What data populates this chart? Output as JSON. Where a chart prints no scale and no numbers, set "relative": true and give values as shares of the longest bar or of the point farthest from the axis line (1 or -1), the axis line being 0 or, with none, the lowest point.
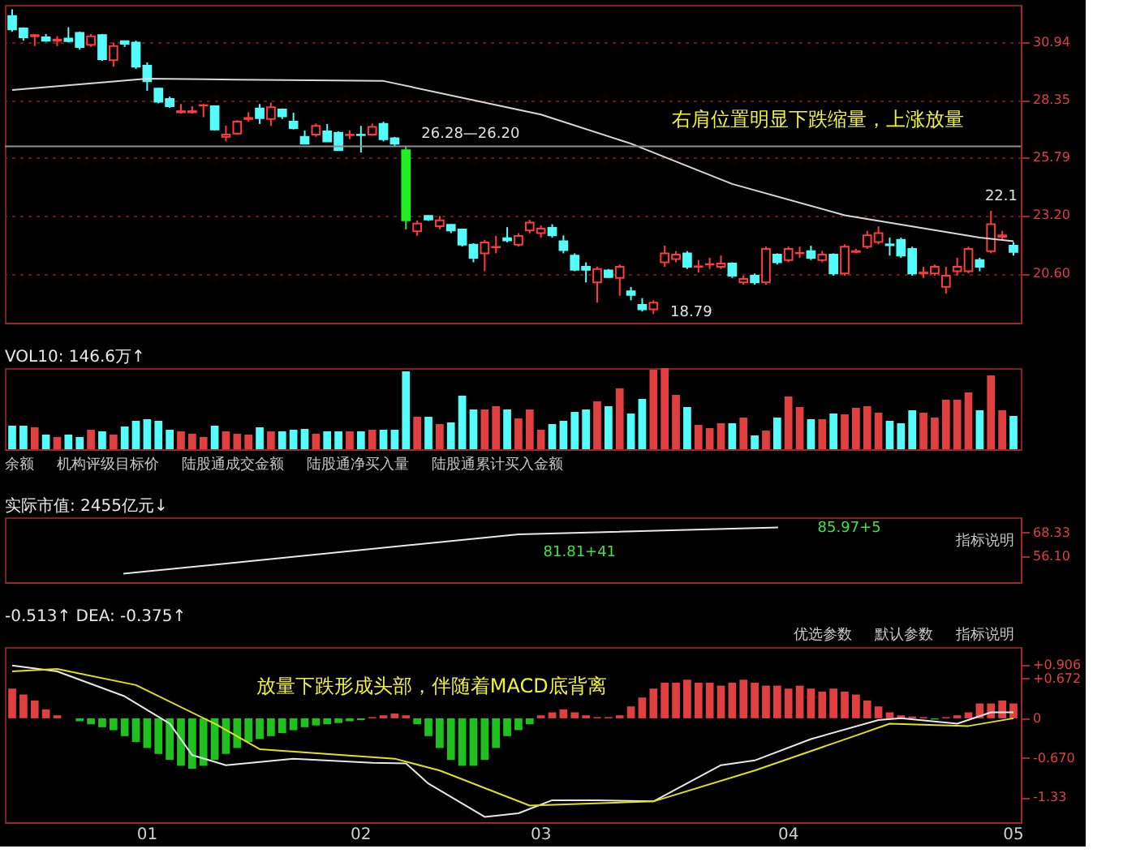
{
  "chart_data": [
    {
      "type": "candlestick",
      "categories": [
        null,
        null,
        null,
        null,
        null,
        null,
        null,
        null,
        null,
        null,
        null,
        null,
        "01",
        null,
        null,
        null,
        null,
        null,
        null,
        null,
        null,
        null,
        null,
        null,
        null,
        null,
        null,
        null,
        null,
        null,
        null,
        "02",
        null,
        null,
        null,
        null,
        null,
        null,
        null,
        null,
        null,
        null,
        null,
        null,
        null,
        null,
        null,
        "03",
        null,
        null,
        null,
        null,
        null,
        null,
        null,
        null,
        null,
        null,
        null,
        null,
        null,
        null,
        null,
        null,
        null,
        null,
        null,
        null,
        null,
        "04",
        null,
        null,
        null,
        null,
        null,
        null,
        null,
        null,
        null,
        null,
        null,
        null,
        null,
        null,
        null,
        null,
        null,
        null,
        null,
        "05"
      ],
      "ohlc": [
        [
          32.1,
          32.4,
          31.4,
          31.5
        ],
        [
          31.55,
          31.6,
          31.0,
          31.15
        ],
        [
          31.2,
          31.3,
          30.76,
          31.25
        ],
        [
          31.15,
          31.3,
          30.95,
          31.0
        ],
        [
          31.0,
          31.2,
          30.76,
          31.05
        ],
        [
          31.1,
          31.6,
          30.92,
          30.98
        ],
        [
          31.35,
          31.4,
          30.6,
          30.72
        ],
        [
          30.82,
          31.3,
          30.72,
          31.2
        ],
        [
          31.25,
          31.3,
          30.1,
          30.17
        ],
        [
          30.13,
          30.92,
          29.84,
          30.76
        ],
        [
          30.98,
          31.0,
          30.72,
          30.86
        ],
        [
          30.92,
          31.0,
          29.74,
          29.84
        ],
        [
          29.88,
          30.03,
          28.76,
          29.19
        ],
        [
          28.86,
          28.9,
          28.2,
          28.27
        ],
        [
          28.4,
          28.5,
          28.0,
          28.07
        ],
        [
          27.8,
          28.17,
          27.74,
          27.85
        ],
        [
          27.8,
          28.07,
          27.74,
          27.85
        ],
        [
          28.1,
          28.17,
          27.58,
          28.12
        ],
        [
          28.07,
          28.1,
          27.0,
          27.03
        ],
        [
          26.7,
          27.2,
          26.5,
          26.8
        ],
        [
          26.85,
          27.45,
          26.8,
          27.38
        ],
        [
          27.5,
          27.8,
          27.38,
          27.55
        ],
        [
          27.97,
          28.17,
          27.28,
          27.54
        ],
        [
          27.5,
          28.23,
          27.19,
          28.03
        ],
        [
          27.93,
          27.97,
          27.5,
          27.62
        ],
        [
          27.38,
          27.78,
          27.03,
          27.09
        ],
        [
          26.7,
          26.99,
          26.4,
          26.4
        ],
        [
          26.8,
          27.3,
          26.7,
          27.19
        ],
        [
          26.95,
          27.28,
          26.5,
          26.5
        ],
        [
          26.89,
          26.95,
          26.1,
          26.11
        ],
        [
          26.78,
          26.99,
          26.6,
          26.8
        ],
        [
          26.8,
          27.19,
          26.0,
          26.78
        ],
        [
          26.8,
          27.3,
          26.75,
          27.15
        ],
        [
          27.28,
          27.38,
          26.5,
          26.6
        ],
        [
          26.64,
          26.7,
          26.3,
          26.4
        ],
        [
          26.11,
          26.28,
          22.57,
          22.97
        ],
        [
          22.48,
          22.97,
          22.28,
          22.83
        ],
        [
          23.17,
          23.2,
          22.95,
          23.01
        ],
        [
          22.71,
          23.17,
          22.57,
          22.97
        ],
        [
          22.77,
          22.8,
          22.4,
          22.52
        ],
        [
          22.57,
          22.6,
          21.8,
          21.89
        ],
        [
          21.89,
          21.95,
          21.1,
          21.3
        ],
        [
          21.5,
          22.1,
          20.7,
          21.99
        ],
        [
          21.77,
          22.28,
          21.5,
          21.79
        ],
        [
          22.18,
          22.67,
          21.99,
          22.08
        ],
        [
          21.89,
          22.4,
          21.8,
          22.28
        ],
        [
          22.52,
          23.0,
          22.4,
          22.87
        ],
        [
          22.4,
          22.75,
          22.2,
          22.6
        ],
        [
          22.64,
          22.8,
          22.2,
          22.3
        ],
        [
          22.04,
          22.3,
          21.5,
          21.64
        ],
        [
          21.4,
          21.5,
          20.7,
          20.76
        ],
        [
          20.9,
          21.1,
          20.2,
          20.76
        ],
        [
          20.2,
          20.9,
          19.3,
          20.8
        ],
        [
          20.74,
          20.8,
          20.4,
          20.44
        ],
        [
          20.4,
          21.0,
          19.6,
          20.9
        ],
        [
          19.8,
          20.0,
          19.4,
          19.64
        ],
        [
          19.2,
          19.5,
          18.9,
          19.0
        ],
        [
          19.0,
          19.4,
          18.79,
          19.3
        ],
        [
          21.1,
          21.84,
          20.9,
          21.5
        ],
        [
          21.24,
          21.6,
          21.1,
          21.44
        ],
        [
          21.5,
          21.6,
          20.8,
          20.9
        ],
        [
          20.9,
          21.2,
          20.64,
          20.92
        ],
        [
          21.0,
          21.3,
          20.8,
          21.02
        ],
        [
          20.9,
          21.4,
          20.8,
          21.04
        ],
        [
          21.04,
          21.1,
          20.4,
          20.5
        ],
        [
          20.2,
          20.5,
          20.1,
          20.36
        ],
        [
          20.5,
          20.6,
          20.1,
          20.2
        ],
        [
          20.2,
          21.8,
          20.1,
          21.7
        ],
        [
          21.44,
          21.5,
          21.0,
          21.1
        ],
        [
          21.2,
          21.8,
          21.1,
          21.7
        ],
        [
          21.5,
          21.8,
          21.3,
          21.52
        ],
        [
          21.6,
          21.84,
          21.2,
          21.3
        ],
        [
          21.2,
          21.6,
          21.1,
          21.44
        ],
        [
          21.44,
          21.5,
          20.5,
          20.6
        ],
        [
          20.6,
          21.9,
          20.5,
          21.8
        ],
        [
          21.56,
          21.7,
          21.5,
          21.6
        ],
        [
          21.8,
          22.5,
          21.7,
          22.3
        ],
        [
          22.0,
          22.7,
          21.9,
          22.4
        ],
        [
          21.9,
          22.2,
          21.4,
          21.86
        ],
        [
          22.1,
          22.2,
          21.3,
          21.4
        ],
        [
          21.7,
          21.8,
          20.5,
          20.6
        ],
        [
          20.6,
          20.9,
          20.4,
          20.64
        ],
        [
          20.6,
          21.0,
          20.5,
          20.9
        ],
        [
          20.0,
          20.9,
          19.7,
          20.5
        ],
        [
          20.7,
          21.3,
          20.5,
          20.9
        ],
        [
          20.7,
          21.8,
          20.6,
          21.7
        ],
        [
          21.2,
          21.3,
          20.7,
          20.9
        ],
        [
          21.6,
          23.4,
          21.5,
          22.8
        ],
        [
          22.24,
          22.5,
          22.1,
          22.3
        ],
        [
          21.84,
          22.0,
          21.4,
          21.56
        ]
      ],
      "colors": [
        "#54fcfc",
        "#54fcfc",
        "#ff3c3c",
        "#54fcfc",
        "#ff3c3c",
        "#54fcfc",
        "#54fcfc",
        "#ff3c3c",
        "#54fcfc",
        "#ff3c3c",
        "#54fcfc",
        "#54fcfc",
        "#54fcfc",
        "#54fcfc",
        "#54fcfc",
        "#ff3c3c",
        "#ff3c3c",
        "#ff3c3c",
        "#54fcfc",
        "#ff3c3c",
        "#ff3c3c",
        "#ff3c3c",
        "#54fcfc",
        "#ff3c3c",
        "#54fcfc",
        "#54fcfc",
        "#54fcfc",
        "#ff3c3c",
        "#54fcfc",
        "#54fcfc",
        "#ff3c3c",
        "#54fcfc",
        "#ff3c3c",
        "#54fcfc",
        "#54fcfc",
        "#22ee22",
        "#ff3c3c",
        "#54fcfc",
        "#ff3c3c",
        "#54fcfc",
        "#54fcfc",
        "#54fcfc",
        "#ff3c3c",
        "#ff3c3c",
        "#54fcfc",
        "#ff3c3c",
        "#ff3c3c",
        "#ff3c3c",
        "#54fcfc",
        "#54fcfc",
        "#54fcfc",
        "#54fcfc",
        "#ff3c3c",
        "#54fcfc",
        "#ff3c3c",
        "#54fcfc",
        "#54fcfc",
        "#ff3c3c",
        "#ff3c3c",
        "#ff3c3c",
        "#54fcfc",
        "#ff3c3c",
        "#ff3c3c",
        "#ff3c3c",
        "#54fcfc",
        "#ff3c3c",
        "#54fcfc",
        "#ff3c3c",
        "#54fcfc",
        "#ff3c3c",
        "#ff3c3c",
        "#54fcfc",
        "#ff3c3c",
        "#54fcfc",
        "#ff3c3c",
        "#ff3c3c",
        "#ff3c3c",
        "#ff3c3c",
        "#54fcfc",
        "#54fcfc",
        "#54fcfc",
        "#ff3c3c",
        "#ff3c3c",
        "#ff3c3c",
        "#ff3c3c",
        "#ff3c3c",
        "#54fcfc",
        "#ff3c3c",
        "#ff3c3c",
        "#54fcfc"
      ],
      "series": [
        {
          "type": "line",
          "color": "#d8d8d8",
          "values": [
            28.8,
            null,
            null,
            null,
            null,
            null,
            null,
            null,
            null,
            null,
            null,
            null,
            29.3,
            null,
            null,
            null,
            null,
            null,
            null,
            null,
            29.26,
            null,
            null,
            null,
            null,
            null,
            null,
            null,
            null,
            null,
            null,
            null,
            null,
            29.2,
            null,
            null,
            null,
            null,
            null,
            null,
            null,
            null,
            null,
            null,
            null,
            null,
            null,
            27.7,
            null,
            null,
            null,
            null,
            null,
            null,
            null,
            26.4,
            null,
            null,
            null,
            null,
            null,
            null,
            null,
            null,
            24.6,
            null,
            null,
            null,
            null,
            null,
            null,
            null,
            null,
            null,
            23.2,
            null,
            null,
            null,
            null,
            null,
            null,
            null,
            null,
            null,
            null,
            null,
            22.2,
            null,
            null,
            22.04
          ]
        }
      ],
      "ylim": [
        18.4,
        32.6
      ],
      "yticks": [
        {
          "value": 20.6,
          "label": "20.60"
        },
        {
          "value": 23.2,
          "label": "23.20"
        },
        25.79,
        28.35,
        30.94
      ],
      "grid": "y",
      "tick_labels": "y",
      "ref_lines": [
        {
          "axis": "y",
          "value": 26.28,
          "color": "#909090"
        }
      ],
      "annotations": [
        "右肩位置明显下跌缩量，上涨放量",
        "26.28—26.20",
        "18.79",
        "22.1"
      ]
    },
    {
      "type": "bar",
      "title": "VOL10: 146.6万↑",
      "relative": true,
      "tick_labels": false,
      "categories": [
        null,
        null,
        null,
        null,
        null,
        null,
        null,
        null,
        null,
        null,
        null,
        null,
        "01",
        null,
        null,
        null,
        null,
        null,
        null,
        null,
        null,
        null,
        null,
        null,
        null,
        null,
        null,
        null,
        null,
        null,
        null,
        "02",
        null,
        null,
        null,
        null,
        null,
        null,
        null,
        null,
        null,
        null,
        null,
        null,
        null,
        null,
        null,
        "03",
        null,
        null,
        null,
        null,
        null,
        null,
        null,
        null,
        null,
        null,
        null,
        null,
        null,
        null,
        null,
        null,
        null,
        null,
        null,
        null,
        null,
        "04",
        null,
        null,
        null,
        null,
        null,
        null,
        null,
        null,
        null,
        null,
        null,
        null,
        null,
        null,
        null,
        null,
        null,
        null,
        null,
        "05"
      ],
      "series": [
        {
          "color": "#54fcfc",
          "values": [
            0.29,
            0.29,
            null,
            0.18,
            null,
            0.18,
            0.15,
            null,
            0.22,
            null,
            0.28,
            0.35,
            0.37,
            0.35,
            0.24,
            null,
            null,
            null,
            0.29,
            null,
            null,
            null,
            0.27,
            null,
            0.22,
            0.24,
            0.25,
            null,
            0.22,
            0.22,
            null,
            0.22,
            null,
            0.24,
            0.24,
            0.96,
            null,
            0.4,
            null,
            0.33,
            0.66,
            0.49,
            null,
            null,
            0.49,
            null,
            null,
            null,
            0.31,
            0.35,
            0.46,
            0.49,
            null,
            0.53,
            null,
            0.44,
            0.62,
            null,
            null,
            null,
            0.52,
            null,
            null,
            null,
            0.32,
            null,
            0.17,
            null,
            0.39,
            null,
            null,
            0.37,
            null,
            0.44,
            null,
            null,
            null,
            null,
            0.35,
            0.32,
            0.48,
            null,
            null,
            null,
            null,
            null,
            0.48,
            null,
            null,
            0.41
          ]
        },
        {
          "color": "#e04040",
          "values": [
            null,
            null,
            0.27,
            null,
            0.15,
            null,
            null,
            0.24,
            null,
            0.18,
            null,
            null,
            null,
            null,
            null,
            0.22,
            0.19,
            0.15,
            null,
            0.22,
            0.19,
            0.18,
            null,
            0.22,
            null,
            null,
            null,
            0.19,
            null,
            null,
            0.22,
            null,
            0.24,
            null,
            null,
            null,
            0.4,
            null,
            0.31,
            null,
            null,
            null,
            0.49,
            0.53,
            null,
            0.38,
            0.49,
            0.24,
            null,
            null,
            null,
            null,
            0.59,
            null,
            0.75,
            null,
            null,
            0.98,
            1.0,
            0.67,
            null,
            0.3,
            0.26,
            0.32,
            null,
            0.39,
            null,
            0.23,
            null,
            0.65,
            0.52,
            null,
            0.37,
            null,
            0.43,
            0.51,
            0.53,
            0.45,
            null,
            null,
            null,
            0.45,
            0.39,
            0.61,
            0.61,
            0.7,
            null,
            0.91,
            0.48,
            null
          ]
        }
      ],
      "annotations": [
        "余额",
        "机构评级目标价",
        "陆股通成交金额",
        "陆股通净买入量",
        "陆股通累计买入金额"
      ]
    },
    {
      "type": "line",
      "title": "实际市值: 2455亿元↓",
      "tick_labels": "y",
      "categories": [
        null,
        null,
        null,
        null,
        null,
        null,
        null,
        null,
        null,
        null,
        null,
        null,
        "01",
        null,
        null,
        null,
        null,
        null,
        null,
        null,
        null,
        null,
        null,
        null,
        null,
        null,
        null,
        null,
        null,
        null,
        null,
        "02",
        null,
        null,
        null,
        null,
        null,
        null,
        null,
        null,
        null,
        null,
        null,
        null,
        null,
        null,
        null,
        "03",
        null,
        null,
        null,
        null,
        null,
        null,
        null,
        null,
        null,
        null,
        null,
        null,
        null,
        null,
        null,
        null,
        null,
        null,
        null,
        null,
        null,
        "04",
        null,
        null,
        null,
        null,
        null,
        null,
        null,
        null,
        null,
        null,
        null,
        null,
        null,
        null,
        null,
        null,
        null,
        null,
        null,
        "05"
      ],
      "series": [
        {
          "color": "#e8e8e8",
          "values": [
            null,
            null,
            null,
            null,
            null,
            null,
            null,
            null,
            null,
            null,
            47.3,
            null,
            null,
            null,
            null,
            null,
            null,
            null,
            null,
            null,
            null,
            null,
            null,
            null,
            null,
            null,
            null,
            null,
            null,
            null,
            null,
            null,
            null,
            null,
            null,
            null,
            null,
            null,
            null,
            null,
            null,
            null,
            null,
            null,
            null,
            67.35,
            null,
            null,
            null,
            null,
            null,
            null,
            null,
            null,
            null,
            null,
            null,
            null,
            null,
            null,
            null,
            null,
            null,
            null,
            null,
            null,
            null,
            null,
            70.8,
            null,
            null,
            null,
            null,
            null,
            null,
            null,
            null,
            null,
            null,
            null,
            null,
            null,
            null,
            null,
            null,
            null,
            null,
            null,
            null,
            null
          ]
        }
      ],
      "ylim": [
        43,
        76
      ],
      "yticks": [
        {
          "value": 56.1,
          "label": "56.10"
        },
        68.33
      ],
      "annotations": [
        "指标说明",
        "81.81+41",
        "85.97+5"
      ]
    },
    {
      "type": "line",
      "title": "-0.513↑  DEA: -0.375↑",
      "categories": [
        null,
        null,
        null,
        null,
        null,
        null,
        null,
        null,
        null,
        null,
        null,
        null,
        "01",
        null,
        null,
        null,
        null,
        null,
        null,
        null,
        null,
        null,
        null,
        null,
        null,
        null,
        null,
        null,
        null,
        null,
        null,
        "02",
        null,
        null,
        null,
        null,
        null,
        null,
        null,
        null,
        null,
        null,
        null,
        null,
        null,
        null,
        null,
        "03",
        null,
        null,
        null,
        null,
        null,
        null,
        null,
        null,
        null,
        null,
        null,
        null,
        null,
        null,
        null,
        null,
        null,
        null,
        null,
        null,
        null,
        "04",
        null,
        null,
        null,
        null,
        null,
        null,
        null,
        null,
        null,
        null,
        null,
        null,
        null,
        null,
        null,
        null,
        null,
        null,
        null,
        "05"
      ],
      "series": [
        {
          "type": "bar",
          "color": "#e04040",
          "values": [
            0.5,
            0.4,
            0.3,
            0.15,
            0.05,
            null,
            null,
            null,
            null,
            null,
            null,
            null,
            null,
            null,
            null,
            null,
            null,
            null,
            null,
            null,
            null,
            null,
            null,
            null,
            null,
            null,
            null,
            null,
            null,
            null,
            null,
            null,
            0.02,
            0.05,
            0.08,
            0.05,
            null,
            null,
            null,
            null,
            null,
            null,
            null,
            null,
            null,
            null,
            null,
            0.05,
            0.1,
            0.15,
            0.1,
            0.05,
            0.02,
            0.02,
            0.05,
            0.2,
            0.35,
            0.5,
            0.6,
            0.6,
            0.65,
            0.6,
            0.6,
            0.55,
            0.6,
            0.65,
            0.6,
            0.55,
            0.55,
            0.5,
            0.55,
            0.5,
            0.45,
            0.5,
            0.45,
            0.4,
            0.3,
            0.2,
            0.1,
            0.05,
            0.03,
            0.02,
            null,
            0.02,
            0.05,
            0.1,
            0.25,
            0.25,
            0.3,
            0.25
          ]
        },
        {
          "type": "bar",
          "color": "#20c020",
          "values": [
            null,
            null,
            null,
            null,
            null,
            null,
            -0.05,
            -0.1,
            -0.15,
            -0.2,
            -0.3,
            -0.4,
            -0.5,
            -0.6,
            -0.7,
            -0.8,
            -0.85,
            -0.8,
            -0.7,
            -0.6,
            -0.5,
            -0.4,
            -0.35,
            -0.3,
            -0.25,
            -0.2,
            -0.15,
            -0.12,
            -0.1,
            -0.08,
            -0.05,
            -0.03,
            null,
            null,
            null,
            null,
            -0.1,
            -0.3,
            -0.5,
            -0.7,
            -0.8,
            -0.8,
            -0.7,
            -0.5,
            -0.3,
            -0.2,
            -0.1,
            null,
            null,
            null,
            null,
            null,
            null,
            null,
            null,
            null,
            null,
            null,
            null,
            null,
            null,
            null,
            null,
            null,
            null,
            null,
            null,
            null,
            null,
            null,
            null,
            null,
            null,
            null,
            null,
            null,
            null,
            null,
            null,
            null,
            null,
            null,
            -0.02,
            null,
            null,
            null,
            null,
            null,
            null,
            null
          ]
        },
        {
          "type": "line",
          "color": "#e8e8e8",
          "values": [
            0.89,
            null,
            null,
            null,
            0.79,
            null,
            null,
            null,
            null,
            null,
            0.37,
            null,
            null,
            null,
            -0.09,
            null,
            -0.62,
            null,
            null,
            -0.79,
            null,
            null,
            null,
            null,
            null,
            -0.68,
            null,
            null,
            null,
            null,
            null,
            null,
            -0.75,
            null,
            null,
            -0.76,
            null,
            -1.1,
            null,
            null,
            null,
            null,
            -1.66,
            null,
            null,
            -1.6,
            null,
            null,
            -1.38,
            null,
            null,
            null,
            -1.38,
            null,
            null,
            null,
            null,
            -1.4,
            null,
            null,
            null,
            null,
            null,
            -0.79,
            null,
            null,
            -0.71,
            null,
            null,
            null,
            null,
            -0.35,
            null,
            null,
            null,
            null,
            null,
            -0.03,
            null,
            0,
            null,
            null,
            null,
            null,
            -0.09,
            null,
            null,
            0.1,
            null,
            0.1
          ]
        },
        {
          "type": "line",
          "color": "#e0e020",
          "values": [
            0.79,
            null,
            null,
            null,
            0.83,
            null,
            null,
            null,
            null,
            null,
            null,
            0.56,
            null,
            null,
            null,
            null,
            null,
            null,
            -0.09,
            null,
            null,
            null,
            -0.52,
            null,
            null,
            null,
            null,
            null,
            null,
            null,
            null,
            null,
            null,
            null,
            -0.68,
            null,
            null,
            null,
            -0.88,
            null,
            null,
            null,
            null,
            null,
            null,
            null,
            -1.47,
            null,
            null,
            null,
            null,
            null,
            null,
            null,
            null,
            null,
            null,
            -1.4,
            null,
            null,
            null,
            null,
            null,
            null,
            null,
            null,
            -0.88,
            null,
            null,
            null,
            null,
            null,
            null,
            null,
            null,
            -0.29,
            null,
            null,
            -0.09,
            null,
            null,
            null,
            null,
            null,
            null,
            -0.13,
            null,
            null,
            null,
            0
          ]
        }
      ],
      "ylim": [
        -1.75,
        1.2
      ],
      "yticks": [
        {
          "value": 0.906,
          "label": "+0.906"
        },
        {
          "value": 0.672,
          "label": "+0.672"
        },
        0,
        {
          "value": -0.67,
          "label": "-0.670"
        },
        -1.33
      ],
      "annotations": [
        "放量下跌形成头部，伴随着MACD底背离",
        "指标说明",
        "默认参数",
        "优选参数"
      ]
    }
  ]
}
